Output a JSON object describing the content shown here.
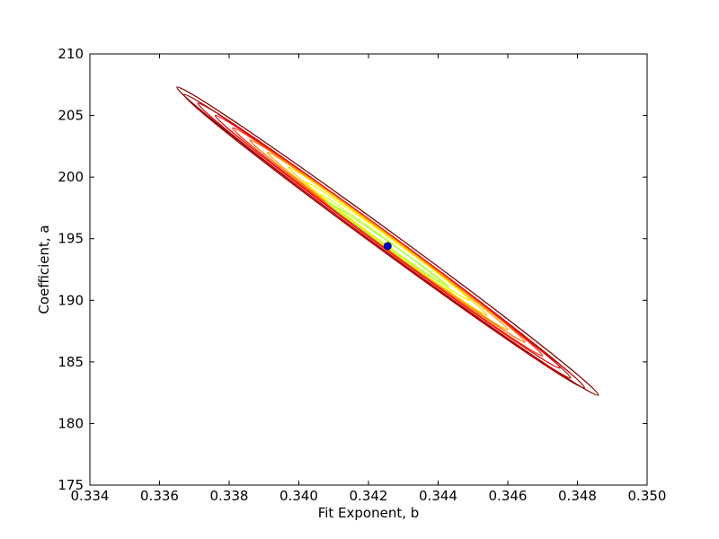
{
  "chart_data": {
    "type": "contour",
    "title": "",
    "xlabel": "Fit Exponent, b",
    "ylabel": "Coefficient, a",
    "xlim": [
      0.334,
      0.35
    ],
    "ylim": [
      175,
      210
    ],
    "x_ticks": [
      0.334,
      0.336,
      0.338,
      0.34,
      0.342,
      0.344,
      0.346,
      0.348,
      0.35
    ],
    "x_tick_labels": [
      "0.334",
      "0.336",
      "0.338",
      "0.340",
      "0.342",
      "0.344",
      "0.346",
      "0.348",
      "0.350"
    ],
    "y_ticks": [
      175,
      180,
      185,
      190,
      195,
      200,
      205,
      210
    ],
    "y_tick_labels": [
      "175",
      "180",
      "185",
      "190",
      "195",
      "200",
      "205",
      "210"
    ],
    "grid": false,
    "legend": "none",
    "best_fit_point": {
      "x": 0.34255,
      "y": 194.4,
      "color": "#0000cc"
    },
    "contour_center": {
      "x": 0.34255,
      "y": 194.8
    },
    "contour_levels": [
      {
        "endpoints": [
          [
            0.3365,
            207.3
          ],
          [
            0.3486,
            182.3
          ]
        ],
        "minor_half_width_b": 0.00027,
        "color": "#7f0000"
      },
      {
        "endpoints": [
          [
            0.3367,
            206.7
          ],
          [
            0.3482,
            182.9
          ]
        ],
        "minor_half_width_b": 0.00025,
        "color": "#9e0000"
      },
      {
        "endpoints": [
          [
            0.3371,
            206.0
          ],
          [
            0.3478,
            183.7
          ]
        ],
        "minor_half_width_b": 0.00023,
        "color": "#c40000"
      },
      {
        "endpoints": [
          [
            0.3376,
            205.0
          ],
          [
            0.3475,
            184.5
          ]
        ],
        "minor_half_width_b": 0.00021,
        "color": "#e8000a"
      },
      {
        "endpoints": [
          [
            0.3381,
            204.0
          ],
          [
            0.347,
            185.5
          ]
        ],
        "minor_half_width_b": 0.00019,
        "color": "#ff2a00"
      },
      {
        "endpoints": [
          [
            0.3386,
            203.0
          ],
          [
            0.3465,
            186.6
          ]
        ],
        "minor_half_width_b": 0.00017,
        "color": "#ff6a00"
      },
      {
        "endpoints": [
          [
            0.3391,
            202.0
          ],
          [
            0.346,
            187.6
          ]
        ],
        "minor_half_width_b": 0.00015,
        "color": "#ffa000"
      },
      {
        "endpoints": [
          [
            0.3397,
            200.8
          ],
          [
            0.3454,
            188.8
          ]
        ],
        "minor_half_width_b": 0.00013,
        "color": "#ffd000"
      },
      {
        "endpoints": [
          [
            0.3402,
            199.6
          ],
          [
            0.3449,
            190.0
          ]
        ],
        "minor_half_width_b": 0.00011,
        "color": "#fff200"
      },
      {
        "endpoints": [
          [
            0.3406,
            198.6
          ],
          [
            0.3444,
            190.7
          ]
        ],
        "minor_half_width_b": 9e-05,
        "color": "#d8ff2a"
      },
      {
        "endpoints": [
          [
            0.3408,
            198.0
          ],
          [
            0.3443,
            191.1
          ]
        ],
        "minor_half_width_b": 7e-05,
        "color": "#a8ff5a"
      }
    ]
  }
}
